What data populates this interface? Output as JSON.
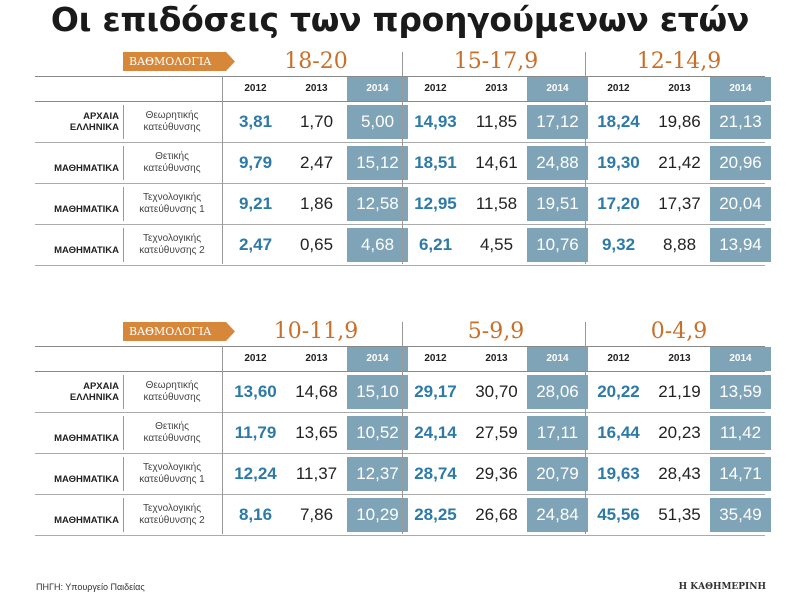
{
  "title": "Οι επιδόσεις των προηγούμενων ετών",
  "grade_label": "ΒΑΘΜΟΛΟΓΙΑ",
  "years": [
    "2012",
    "2013",
    "2014"
  ],
  "rows": [
    {
      "subject_lines": [
        "ΑΡΧΑΙΑ",
        "ΕΛΛΗΝΙΚΑ"
      ],
      "track_lines": [
        "Θεωρητικής",
        "κατεύθυνσης"
      ]
    },
    {
      "subject_lines": [
        "ΜΑΘΗΜΑΤΙΚΑ"
      ],
      "track_lines": [
        "Θετικής",
        "κατεύθυνσης"
      ]
    },
    {
      "subject_lines": [
        "ΜΑΘΗΜΑΤΙΚΑ"
      ],
      "track_lines": [
        "Τεχνολογικής",
        "κατεύθυνσης 1"
      ]
    },
    {
      "subject_lines": [
        "ΜΑΘΗΜΑΤΙΚΑ"
      ],
      "track_lines": [
        "Τεχνολογικής",
        "κατεύθυνσης 2"
      ]
    }
  ],
  "panels": [
    {
      "ranges": [
        "18-20",
        "15-17,9",
        "12-14,9"
      ],
      "values": [
        [
          [
            "3,81",
            "1,70",
            "5,00"
          ],
          [
            "14,93",
            "11,85",
            "17,12"
          ],
          [
            "18,24",
            "19,86",
            "21,13"
          ]
        ],
        [
          [
            "9,79",
            "2,47",
            "15,12"
          ],
          [
            "18,51",
            "14,61",
            "24,88"
          ],
          [
            "19,30",
            "21,42",
            "20,96"
          ]
        ],
        [
          [
            "9,21",
            "1,86",
            "12,58"
          ],
          [
            "12,95",
            "11,58",
            "19,51"
          ],
          [
            "17,20",
            "17,37",
            "20,04"
          ]
        ],
        [
          [
            "2,47",
            "0,65",
            "4,68"
          ],
          [
            "6,21",
            "4,55",
            "10,76"
          ],
          [
            "9,32",
            "8,88",
            "13,94"
          ]
        ]
      ]
    },
    {
      "ranges": [
        "10-11,9",
        "5-9,9",
        "0-4,9"
      ],
      "values": [
        [
          [
            "13,60",
            "14,68",
            "15,10"
          ],
          [
            "29,17",
            "30,70",
            "28,06"
          ],
          [
            "20,22",
            "21,19",
            "13,59"
          ]
        ],
        [
          [
            "11,79",
            "13,65",
            "10,52"
          ],
          [
            "24,14",
            "27,59",
            "17,11"
          ],
          [
            "16,44",
            "20,23",
            "11,42"
          ]
        ],
        [
          [
            "12,24",
            "11,37",
            "12,37"
          ],
          [
            "28,74",
            "29,36",
            "20,79"
          ],
          [
            "19,63",
            "28,43",
            "14,71"
          ]
        ],
        [
          [
            "8,16",
            "7,86",
            "10,29"
          ],
          [
            "28,25",
            "26,68",
            "24,84"
          ],
          [
            "45,56",
            "51,35",
            "35,49"
          ]
        ]
      ]
    }
  ],
  "source": "ΠΗΓΗ: Υπουργείο Παιδείας",
  "brand": "Η ΚΑΘΗΜΕΡΙΝΗ",
  "colors": {
    "accent_orange": "#c8702a",
    "badge": "#d6873a",
    "highlight_blue": "#7fa3b7",
    "value_blue": "#2d7aa6"
  }
}
